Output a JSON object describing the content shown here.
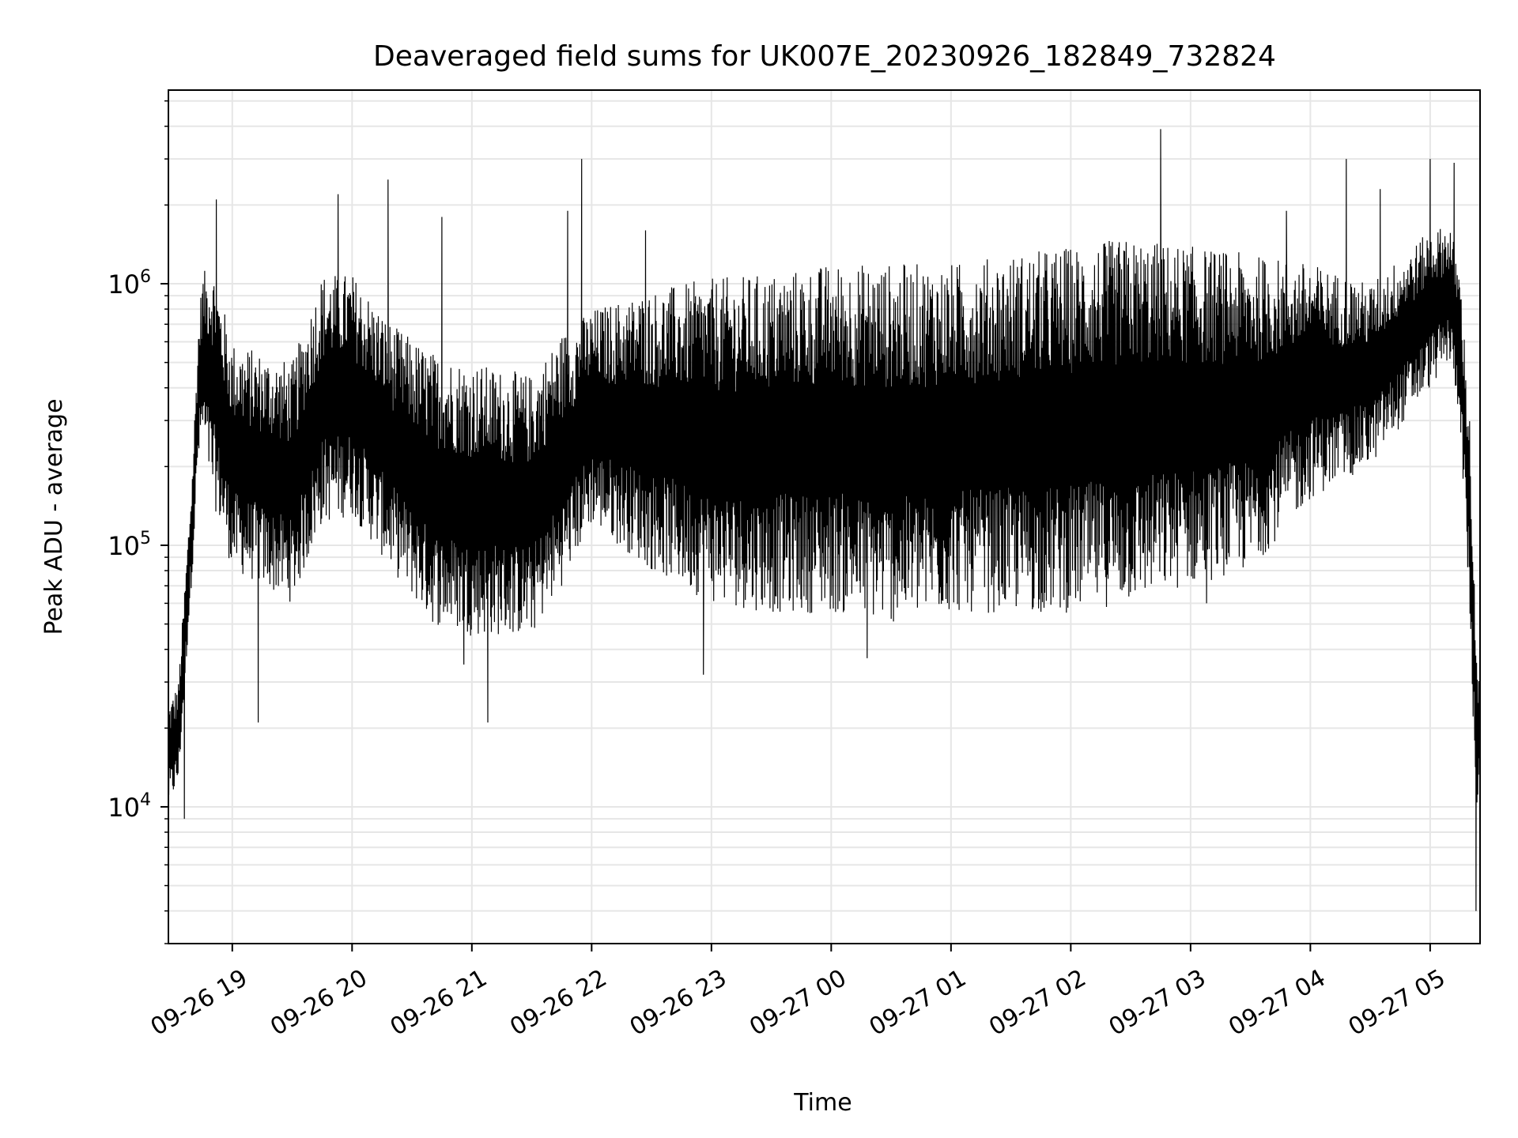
{
  "chart_data": {
    "type": "line",
    "title": "Deaveraged field sums for UK007E_20230926_182849_732824",
    "xlabel": "Time",
    "ylabel": "Peak ADU - average",
    "yscale": "log",
    "ylim": [
      3000,
      5500000
    ],
    "xlim": [
      "2023-09-26 18:28",
      "2023-09-27 05:25"
    ],
    "x_ticks": [
      "2023-09-26 19:00",
      "2023-09-26 20:00",
      "2023-09-26 21:00",
      "2023-09-26 22:00",
      "2023-09-26 23:00",
      "2023-09-27 00:00",
      "2023-09-27 01:00",
      "2023-09-27 02:00",
      "2023-09-27 03:00",
      "2023-09-27 04:00",
      "2023-09-27 05:00"
    ],
    "x_tick_labels": [
      "09-26 19",
      "09-26 20",
      "09-26 21",
      "09-26 22",
      "09-26 23",
      "09-27 00",
      "09-27 01",
      "09-27 02",
      "09-27 03",
      "09-27 04",
      "09-27 05"
    ],
    "y_tick_labels": [
      {
        "value": 10000,
        "base": "10",
        "exp": "4"
      },
      {
        "value": 100000,
        "base": "10",
        "exp": "5"
      },
      {
        "value": 1000000,
        "base": "10",
        "exp": "6"
      }
    ],
    "grid": "major and minor",
    "colors": {
      "line": "#000000",
      "grid": "#e6e6e6",
      "axes": "#000000"
    },
    "envelope": {
      "x": [
        "2023-09-26 18:28",
        "2023-09-26 18:33",
        "2023-09-26 18:40",
        "2023-09-26 18:43",
        "2023-09-26 18:45",
        "2023-09-26 18:50",
        "2023-09-26 19:00",
        "2023-09-26 19:30",
        "2023-09-26 19:45",
        "2023-09-26 20:00",
        "2023-09-26 20:20",
        "2023-09-26 20:40",
        "2023-09-26 21:00",
        "2023-09-26 21:30",
        "2023-09-26 21:45",
        "2023-09-26 22:00",
        "2023-09-26 22:30",
        "2023-09-26 23:00",
        "2023-09-26 23:30",
        "2023-09-27 00:00",
        "2023-09-27 00:30",
        "2023-09-27 01:00",
        "2023-09-27 01:30",
        "2023-09-27 02:00",
        "2023-09-27 02:30",
        "2023-09-27 03:00",
        "2023-09-27 03:30",
        "2023-09-27 04:00",
        "2023-09-27 04:30",
        "2023-09-27 05:00",
        "2023-09-27 05:10",
        "2023-09-27 05:15",
        "2023-09-27 05:20",
        "2023-09-27 05:23",
        "2023-09-27 05:25"
      ],
      "upper": [
        25000,
        30000,
        200000,
        700000,
        1100000,
        1200000,
        600000,
        500000,
        1100000,
        1100000,
        700000,
        550000,
        500000,
        450000,
        650000,
        800000,
        950000,
        1050000,
        1100000,
        1200000,
        1200000,
        1200000,
        1300000,
        1400000,
        1500000,
        1400000,
        1300000,
        1200000,
        1000000,
        1600000,
        1700000,
        1100000,
        300000,
        40000,
        30000
      ],
      "lower": [
        10000,
        12000,
        80000,
        200000,
        250000,
        150000,
        80000,
        60000,
        120000,
        130000,
        80000,
        50000,
        45000,
        45000,
        70000,
        120000,
        80000,
        60000,
        55000,
        55000,
        50000,
        55000,
        55000,
        55000,
        60000,
        70000,
        80000,
        150000,
        200000,
        400000,
        500000,
        300000,
        50000,
        8000,
        15000
      ]
    },
    "spikes": [
      {
        "x": "2023-09-26 18:36",
        "y": 9000
      },
      {
        "x": "2023-09-26 18:52",
        "y": 2100000
      },
      {
        "x": "2023-09-26 19:13",
        "y": 21000
      },
      {
        "x": "2023-09-26 19:53",
        "y": 2200000
      },
      {
        "x": "2023-09-26 20:18",
        "y": 2500000
      },
      {
        "x": "2023-09-26 20:45",
        "y": 1800000
      },
      {
        "x": "2023-09-26 20:56",
        "y": 35000
      },
      {
        "x": "2023-09-26 21:08",
        "y": 21000
      },
      {
        "x": "2023-09-26 21:55",
        "y": 3000000
      },
      {
        "x": "2023-09-26 21:48",
        "y": 1900000
      },
      {
        "x": "2023-09-26 22:27",
        "y": 1600000
      },
      {
        "x": "2023-09-26 22:56",
        "y": 32000
      },
      {
        "x": "2023-09-27 00:18",
        "y": 37000
      },
      {
        "x": "2023-09-27 02:45",
        "y": 3900000
      },
      {
        "x": "2023-09-27 03:08",
        "y": 60000
      },
      {
        "x": "2023-09-27 03:48",
        "y": 1900000
      },
      {
        "x": "2023-09-27 04:18",
        "y": 3000000
      },
      {
        "x": "2023-09-27 04:35",
        "y": 2300000
      },
      {
        "x": "2023-09-27 05:00",
        "y": 3000000
      },
      {
        "x": "2023-09-27 05:12",
        "y": 2900000
      },
      {
        "x": "2023-09-27 05:23",
        "y": 4000
      }
    ],
    "series": [
      {
        "points": []
      }
    ]
  }
}
